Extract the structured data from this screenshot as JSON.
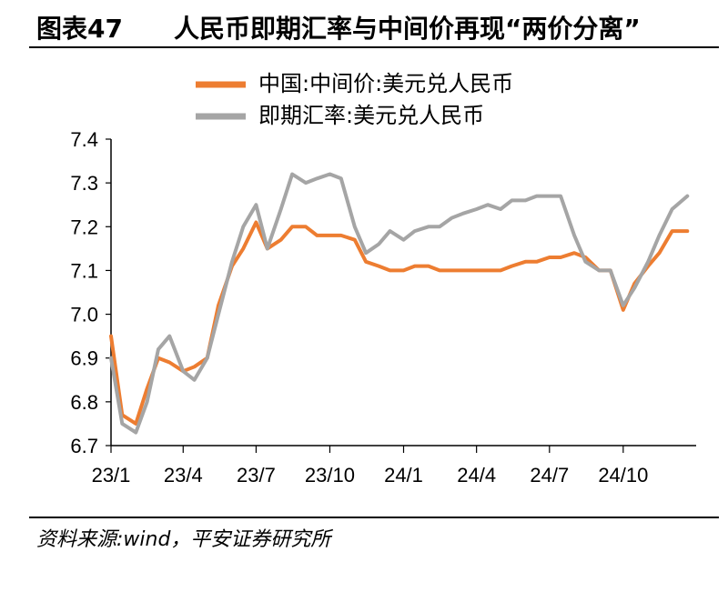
{
  "header": {
    "title": "图表47　　人民币即期汇率与中间价再现“两价分离”"
  },
  "footer": {
    "source": "资料来源:wind，平安证券研究所"
  },
  "colors": {
    "series1": "#ED7D31",
    "series2": "#A5A5A5",
    "axis": "#000000"
  },
  "chart_data": {
    "type": "line",
    "title": "",
    "xlabel": "",
    "ylabel": "",
    "ylim": [
      6.7,
      7.4
    ],
    "yticks": [
      "6.7",
      "6.8",
      "6.9",
      "7.0",
      "7.1",
      "7.2",
      "7.3",
      "7.4"
    ],
    "xticks": [
      "23/1",
      "23/4",
      "23/7",
      "23/10",
      "24/1",
      "24/4",
      "24/7",
      "24/10"
    ],
    "x": [
      "2023-01-01",
      "2023-01-15",
      "2023-02-01",
      "2023-02-15",
      "2023-03-01",
      "2023-03-15",
      "2023-04-01",
      "2023-04-15",
      "2023-05-01",
      "2023-05-15",
      "2023-06-01",
      "2023-06-15",
      "2023-07-01",
      "2023-07-15",
      "2023-08-01",
      "2023-08-15",
      "2023-09-01",
      "2023-09-15",
      "2023-10-01",
      "2023-10-15",
      "2023-11-01",
      "2023-11-15",
      "2023-12-01",
      "2023-12-15",
      "2024-01-01",
      "2024-01-15",
      "2024-02-01",
      "2024-02-15",
      "2024-03-01",
      "2024-03-15",
      "2024-04-01",
      "2024-04-15",
      "2024-05-01",
      "2024-05-15",
      "2024-06-01",
      "2024-06-15",
      "2024-07-01",
      "2024-07-15",
      "2024-08-01",
      "2024-08-15",
      "2024-09-01",
      "2024-09-15",
      "2024-10-01",
      "2024-10-15",
      "2024-11-01",
      "2024-11-15",
      "2024-12-01",
      "2024-12-20"
    ],
    "legend": {
      "position": "top"
    },
    "series": [
      {
        "name": "中国:中间价:美元兑人民币",
        "color": "#ED7D31",
        "values": [
          6.95,
          6.77,
          6.75,
          6.83,
          6.9,
          6.89,
          6.87,
          6.88,
          6.9,
          7.02,
          7.11,
          7.15,
          7.21,
          7.15,
          7.17,
          7.2,
          7.2,
          7.18,
          7.18,
          7.18,
          7.17,
          7.12,
          7.11,
          7.1,
          7.1,
          7.11,
          7.11,
          7.1,
          7.1,
          7.1,
          7.1,
          7.1,
          7.1,
          7.11,
          7.12,
          7.12,
          7.13,
          7.13,
          7.14,
          7.13,
          7.1,
          7.1,
          7.01,
          7.07,
          7.11,
          7.14,
          7.19,
          7.19
        ]
      },
      {
        "name": "即期汇率:美元兑人民币",
        "color": "#A5A5A5",
        "values": [
          6.9,
          6.75,
          6.73,
          6.8,
          6.92,
          6.95,
          6.87,
          6.85,
          6.9,
          7.0,
          7.12,
          7.2,
          7.25,
          7.15,
          7.24,
          7.32,
          7.3,
          7.31,
          7.32,
          7.31,
          7.2,
          7.14,
          7.16,
          7.19,
          7.17,
          7.19,
          7.2,
          7.2,
          7.22,
          7.23,
          7.24,
          7.25,
          7.24,
          7.26,
          7.26,
          7.27,
          7.27,
          7.27,
          7.18,
          7.12,
          7.1,
          7.1,
          7.02,
          7.06,
          7.12,
          7.18,
          7.24,
          7.27
        ]
      }
    ]
  }
}
